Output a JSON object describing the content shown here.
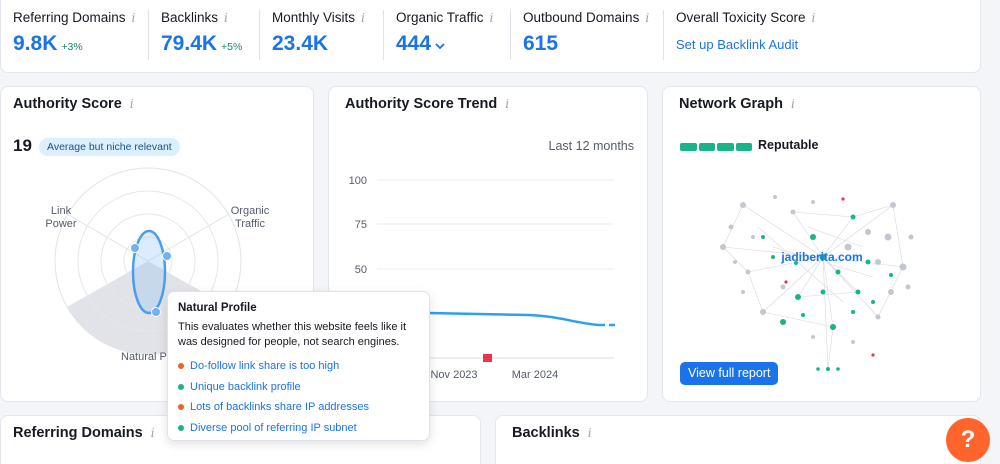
{
  "metrics": [
    {
      "label": "Referring Domains",
      "value": "9.8K",
      "delta": "+3%"
    },
    {
      "label": "Backlinks",
      "value": "79.4K",
      "delta": "+5%"
    },
    {
      "label": "Monthly Visits",
      "value": "23.4K"
    },
    {
      "label": "Organic Traffic",
      "value": "444"
    },
    {
      "label": "Outbound Domains",
      "value": "615"
    },
    {
      "label": "Overall Toxicity Score",
      "link": "Set up Backlink Audit"
    }
  ],
  "info_glyph": "i",
  "authority": {
    "title": "Authority Score",
    "score": "19",
    "badge": "Average but niche relevant",
    "axis_link_power_1": "Link",
    "axis_link_power_2": "Power",
    "axis_organic_1": "Organic",
    "axis_organic_2": "Traffic",
    "axis_natural": "Natural Pr"
  },
  "trend": {
    "title": "Authority Score Trend",
    "range": "Last 12 months",
    "y_ticks": [
      "100",
      "75",
      "50"
    ],
    "x_ticks": [
      "Nov 2023",
      "Mar 2024"
    ]
  },
  "network": {
    "title": "Network Graph",
    "status": "Reputable",
    "domain": "jadiberita.com",
    "button": "View full report"
  },
  "tooltip": {
    "title": "Natural Profile",
    "text": "This evaluates whether this website feels like it was designed for people, not search engines.",
    "items": [
      {
        "label": "Do-follow link share is too high",
        "status": "bad"
      },
      {
        "label": "Unique backlink profile",
        "status": "good"
      },
      {
        "label": "Lots of backlinks share IP addresses",
        "status": "bad"
      },
      {
        "label": "Diverse pool of referring IP subnet",
        "status": "good"
      }
    ]
  },
  "bottom": {
    "referring_domains_title": "Referring Domains",
    "backlinks_title": "Backlinks"
  },
  "help_label": "?",
  "colors": {
    "accent": "#1a73e8",
    "good": "#19b488",
    "bad": "#f0602c",
    "help": "#ff642d"
  }
}
